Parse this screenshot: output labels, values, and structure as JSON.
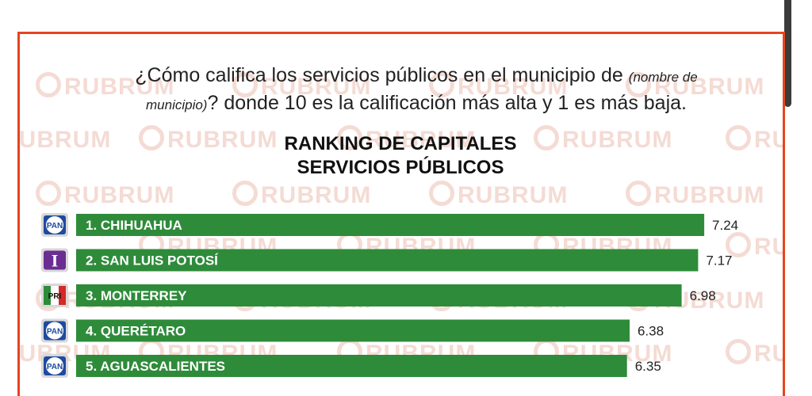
{
  "question": {
    "part1": "¿Cómo califica los servicios públicos en el municipio de",
    "italic": "(nombre de municipio)",
    "part2": "? donde 10 es la calificación más alta y 1 es más baja."
  },
  "watermark_text": "RUBRUM",
  "colors": {
    "bar": "#2e8b3a",
    "border": "#e8431f",
    "pan": "#1f4aa0",
    "independent": "#6b2d91"
  },
  "chart_data": {
    "type": "bar",
    "orientation": "horizontal",
    "title_line1": "RANKING DE CAPITALES",
    "title_line2": "SERVICIOS PÚBLICOS",
    "categories": [
      "1. CHIHUAHUA",
      "2. SAN LUIS POTOSÍ",
      "3. MONTERREY",
      "4. QUERÉTARO",
      "5. AGUASCALIENTES"
    ],
    "values": [
      7.24,
      7.17,
      6.98,
      6.38,
      6.35
    ],
    "value_labels": [
      "7.24",
      "7.17",
      "6.98",
      "6.38",
      "6.35"
    ],
    "party_icons": [
      "pan",
      "independent",
      "pri",
      "pan",
      "pan"
    ],
    "party_labels": [
      "PAN",
      "I",
      "PRI",
      "PAN",
      "PAN"
    ]
  }
}
